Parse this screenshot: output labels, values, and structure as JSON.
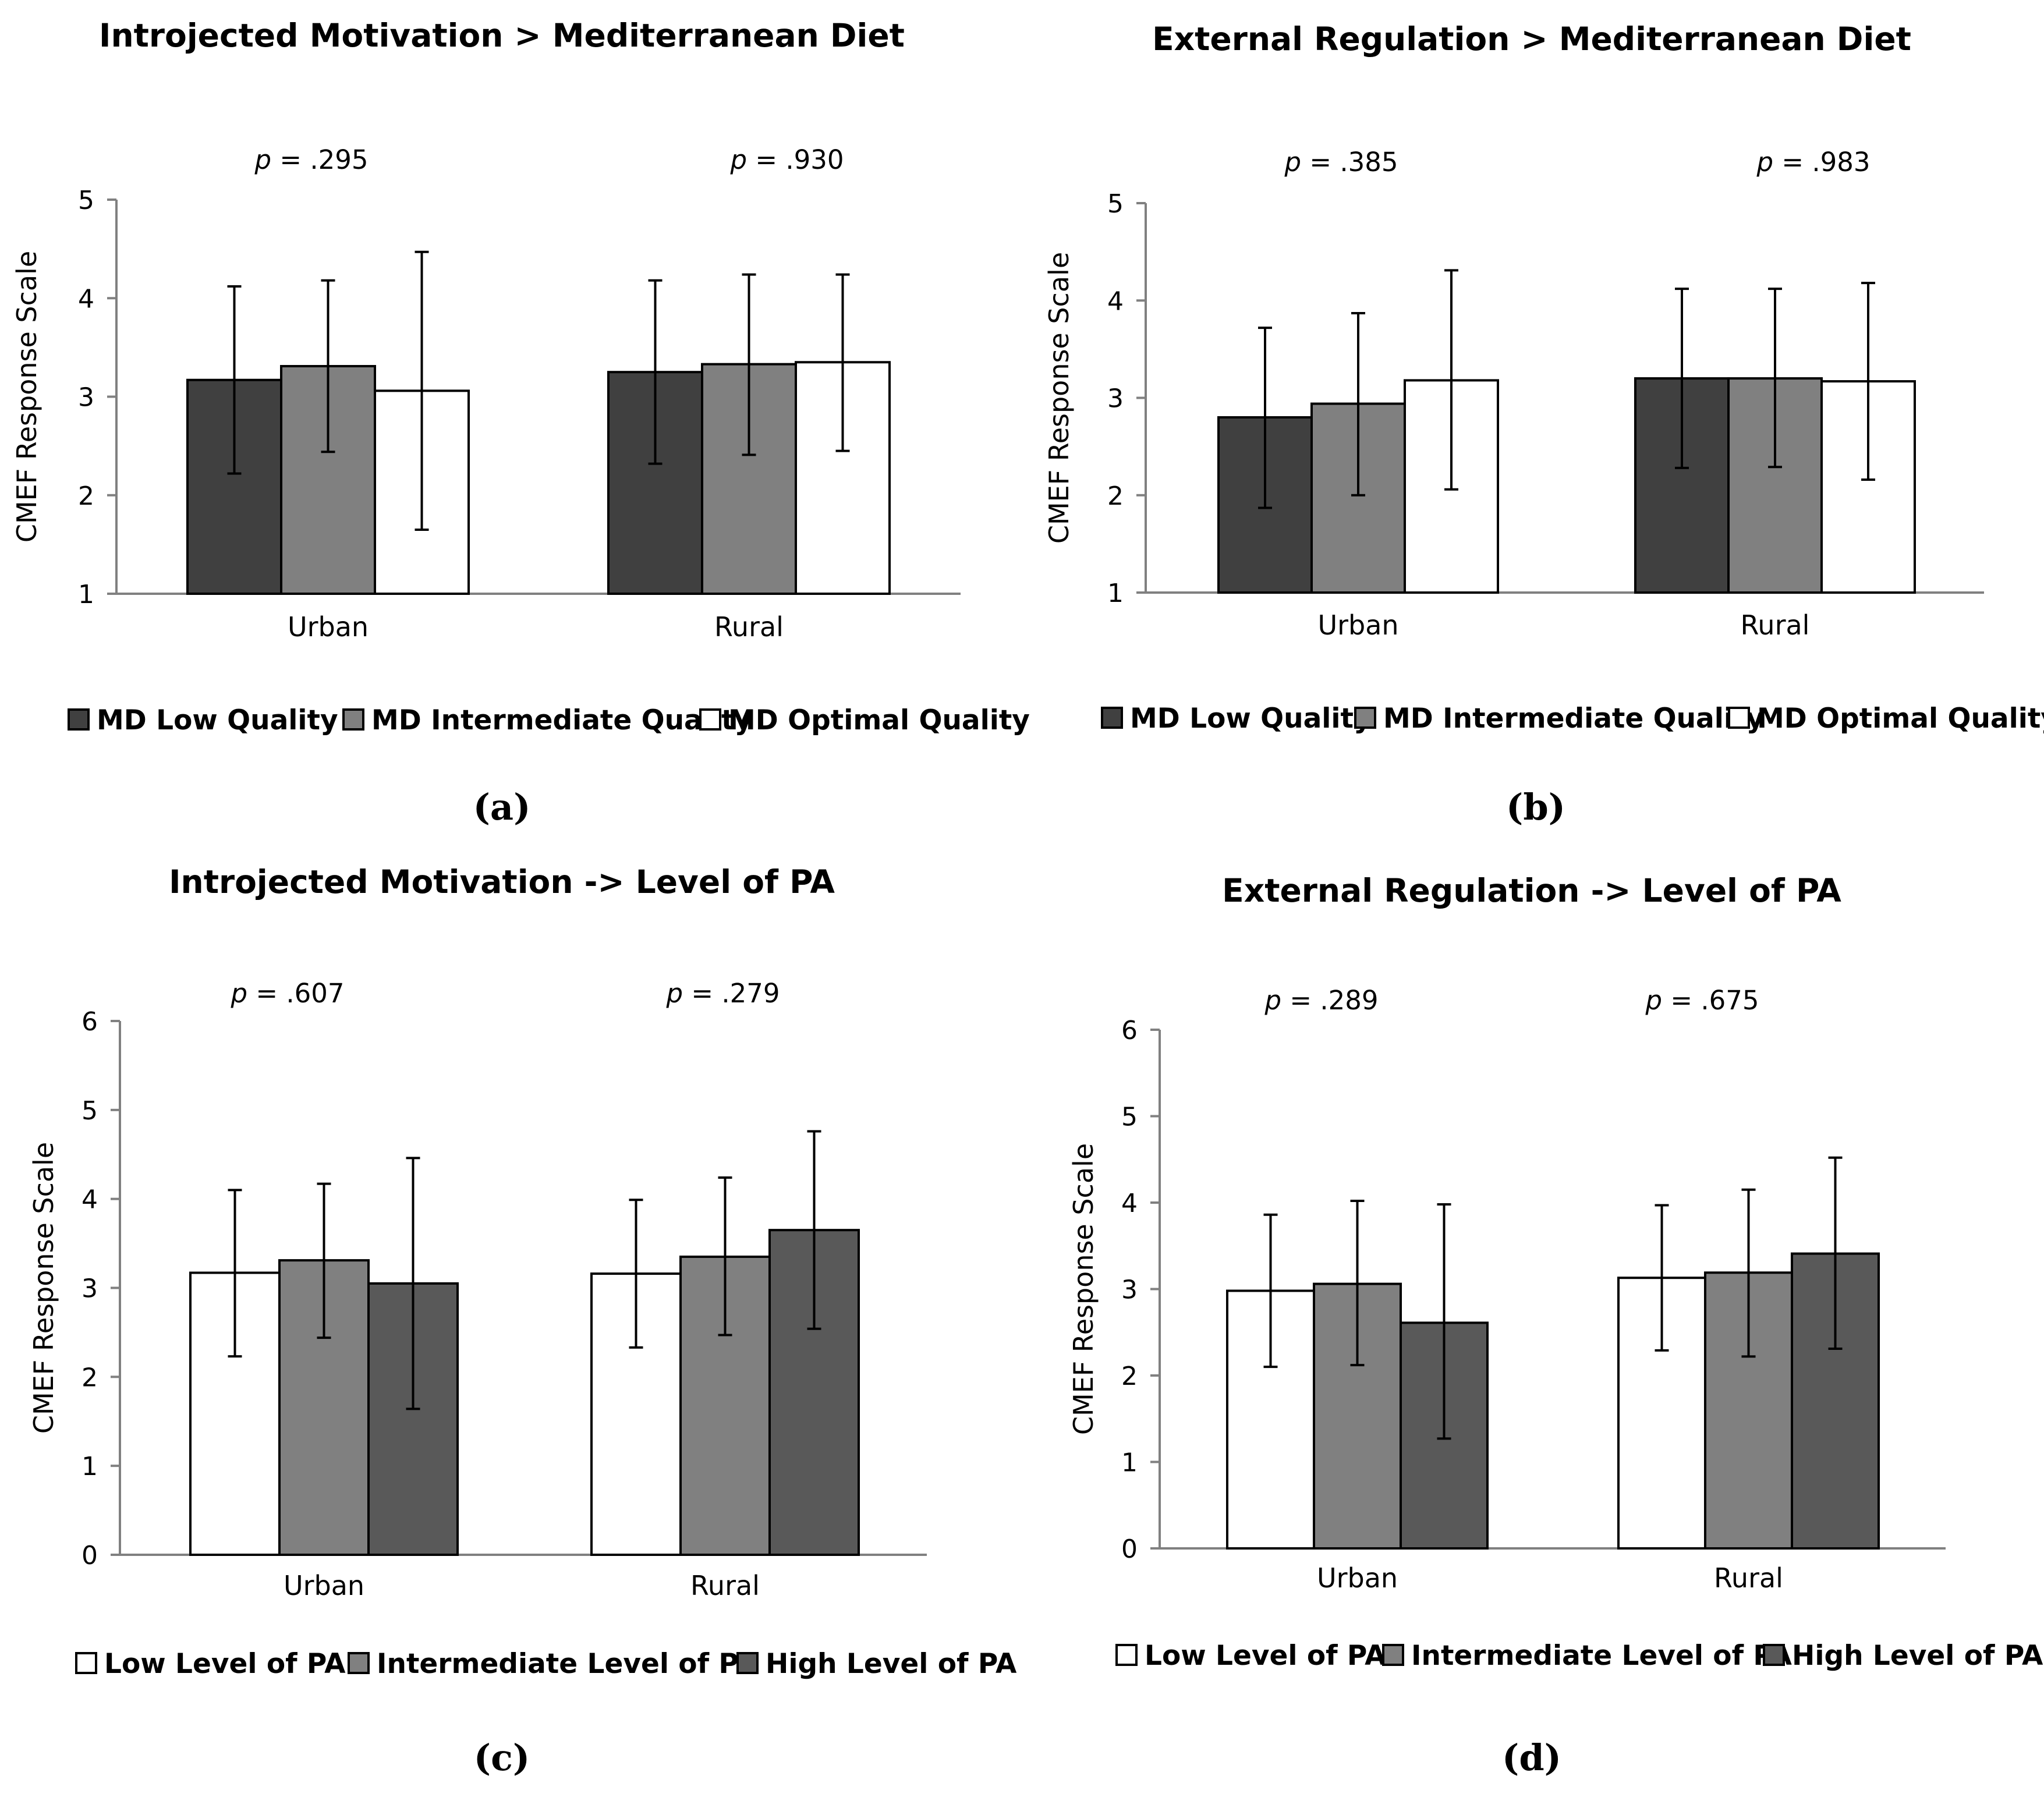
{
  "chart_data": [
    {
      "type": "bar",
      "panel": "(a)",
      "title": "Introjected Motivation > Mediterranean Diet",
      "ylabel": "CMEF Response Scale",
      "xlabel": "",
      "ylim": [
        1,
        5
      ],
      "yticks": [
        "1",
        "2",
        "3",
        "4",
        "5"
      ],
      "categories": [
        "Urban",
        "Rural"
      ],
      "p_values": [
        {
          "prefix": "p",
          "value": " = .295"
        },
        {
          "prefix": "p",
          "value": " = .930"
        }
      ],
      "series": [
        {
          "name": "MD Low Quality",
          "color": "#404040",
          "values": [
            3.17,
            3.25
          ],
          "err_low": [
            2.22,
            2.32
          ],
          "err_high": [
            4.12,
            4.18
          ]
        },
        {
          "name": "MD Intermediate Quality",
          "color": "#808080",
          "values": [
            3.31,
            3.33
          ],
          "err_low": [
            2.44,
            2.41
          ],
          "err_high": [
            4.18,
            4.24
          ]
        },
        {
          "name": "MD Optimal Quality",
          "color": "#ffffff",
          "values": [
            3.06,
            3.35
          ],
          "err_low": [
            1.65,
            2.45
          ],
          "err_high": [
            4.47,
            4.24
          ]
        }
      ],
      "legend_position": "bottom"
    },
    {
      "type": "bar",
      "panel": "(b)",
      "title": "External Regulation > Mediterranean Diet",
      "ylabel": "CMEF Response Scale",
      "xlabel": "",
      "ylim": [
        1,
        5
      ],
      "yticks": [
        "1",
        "2",
        "3",
        "4",
        "5"
      ],
      "categories": [
        "Urban",
        "Rural"
      ],
      "p_values": [
        {
          "prefix": "p",
          "value": " = .385"
        },
        {
          "prefix": "p",
          "value": " = .983"
        }
      ],
      "series": [
        {
          "name": "MD Low Quality",
          "color": "#404040",
          "values": [
            2.8,
            3.2
          ],
          "err_low": [
            1.87,
            2.28
          ],
          "err_high": [
            3.72,
            4.12
          ]
        },
        {
          "name": "MD Intermediate Quality",
          "color": "#808080",
          "values": [
            2.94,
            3.2
          ],
          "err_low": [
            2.0,
            2.29
          ],
          "err_high": [
            3.87,
            4.12
          ]
        },
        {
          "name": "MD Optimal Quality",
          "color": "#ffffff",
          "values": [
            3.18,
            3.17
          ],
          "err_low": [
            2.06,
            2.16
          ],
          "err_high": [
            4.31,
            4.18
          ]
        }
      ],
      "legend_position": "bottom"
    },
    {
      "type": "bar",
      "panel": "(c)",
      "title": "Introjected Motivation -> Level of PA",
      "ylabel": "CMEF Response Scale",
      "xlabel": "",
      "ylim": [
        0,
        6
      ],
      "yticks": [
        "0",
        "1",
        "2",
        "3",
        "4",
        "5",
        "6"
      ],
      "categories": [
        "Urban",
        "Rural"
      ],
      "p_values": [
        {
          "prefix": "p",
          "value": " = .607"
        },
        {
          "prefix": "p",
          "value": " = .279"
        }
      ],
      "series": [
        {
          "name": "Low Level of PA",
          "color": "#ffffff",
          "values": [
            3.17,
            3.16
          ],
          "err_low": [
            2.23,
            2.33
          ],
          "err_high": [
            4.1,
            3.99
          ]
        },
        {
          "name": "Intermediate Level of PA",
          "color": "#808080",
          "values": [
            3.31,
            3.35
          ],
          "err_low": [
            2.44,
            2.47
          ],
          "err_high": [
            4.17,
            4.24
          ]
        },
        {
          "name": "High Level of PA",
          "color": "#595959",
          "values": [
            3.05,
            3.65
          ],
          "err_low": [
            1.64,
            2.54
          ],
          "err_high": [
            4.46,
            4.76
          ]
        }
      ],
      "legend_position": "bottom"
    },
    {
      "type": "bar",
      "panel": "(d)",
      "title": "External Regulation -> Level of PA",
      "ylabel": "CMEF Response Scale",
      "xlabel": "",
      "ylim": [
        0,
        6
      ],
      "yticks": [
        "0",
        "1",
        "2",
        "3",
        "4",
        "5",
        "6"
      ],
      "categories": [
        "Urban",
        "Rural"
      ],
      "p_values": [
        {
          "prefix": "p",
          "value": " = .289"
        },
        {
          "prefix": "p",
          "value": " = .675"
        }
      ],
      "series": [
        {
          "name": "Low Level of PA",
          "color": "#ffffff",
          "values": [
            2.98,
            3.13
          ],
          "err_low": [
            2.1,
            2.29
          ],
          "err_high": [
            3.86,
            3.97
          ]
        },
        {
          "name": "Intermediate Level of PA",
          "color": "#808080",
          "values": [
            3.06,
            3.19
          ],
          "err_low": [
            2.12,
            2.22
          ],
          "err_high": [
            4.02,
            4.15
          ]
        },
        {
          "name": "High Level of PA",
          "color": "#595959",
          "values": [
            2.61,
            3.41
          ],
          "err_low": [
            1.27,
            2.31
          ],
          "err_high": [
            3.98,
            4.52
          ]
        }
      ],
      "legend_position": "bottom"
    }
  ]
}
